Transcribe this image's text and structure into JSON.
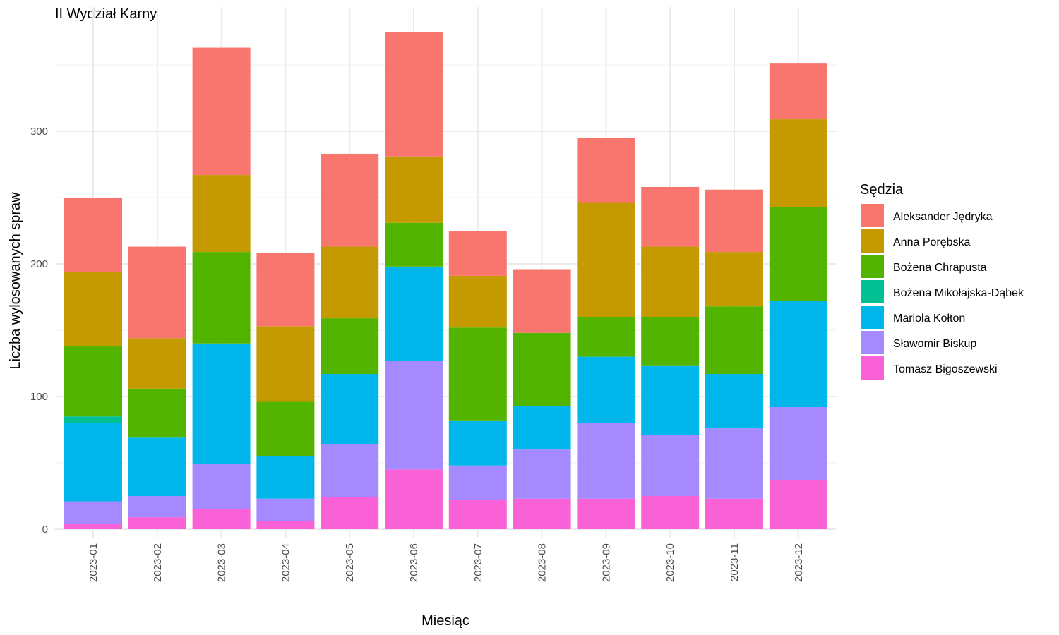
{
  "chart_data": {
    "type": "bar",
    "stacked": true,
    "title": "II Wydział Karny",
    "xlabel": "Miesiąc",
    "ylabel": "Liczba wylosowanych spraw",
    "ylim": [
      0,
      380
    ],
    "yticks": [
      0,
      100,
      200,
      300
    ],
    "grid": true,
    "legend_title": "Sędzia",
    "legend_position": "right",
    "categories": [
      "2023-01",
      "2023-02",
      "2023-03",
      "2023-04",
      "2023-05",
      "2023-06",
      "2023-07",
      "2023-08",
      "2023-09",
      "2023-10",
      "2023-11",
      "2023-12"
    ],
    "series": [
      {
        "name": "Aleksander Jędryka",
        "color": "#F8766D",
        "values": [
          56,
          69,
          96,
          55,
          70,
          94,
          34,
          48,
          49,
          45,
          47,
          42
        ]
      },
      {
        "name": "Anna Porębska",
        "color": "#C49A00",
        "values": [
          56,
          38,
          58,
          57,
          54,
          50,
          39,
          0,
          86,
          53,
          41,
          66
        ]
      },
      {
        "name": "Bożena Chrapusta",
        "color": "#53B400",
        "values": [
          53,
          37,
          69,
          41,
          42,
          33,
          70,
          55,
          30,
          37,
          51,
          71
        ]
      },
      {
        "name": "Bożena Mikołajska-Dąbek",
        "color": "#00C094",
        "values": [
          5,
          0,
          0,
          0,
          0,
          0,
          0,
          0,
          0,
          0,
          0,
          0
        ]
      },
      {
        "name": "Mariola Kołton",
        "color": "#00B6EB",
        "values": [
          59,
          44,
          91,
          32,
          53,
          71,
          34,
          33,
          50,
          52,
          41,
          80
        ]
      },
      {
        "name": "Sławomir Biskup",
        "color": "#A58AFF",
        "values": [
          17,
          16,
          34,
          17,
          40,
          82,
          26,
          37,
          57,
          46,
          53,
          55
        ]
      },
      {
        "name": "Tomasz Bigoszewski",
        "color": "#FB61D7",
        "values": [
          4,
          9,
          15,
          6,
          24,
          45,
          22,
          23,
          23,
          25,
          23,
          37
        ]
      }
    ]
  }
}
